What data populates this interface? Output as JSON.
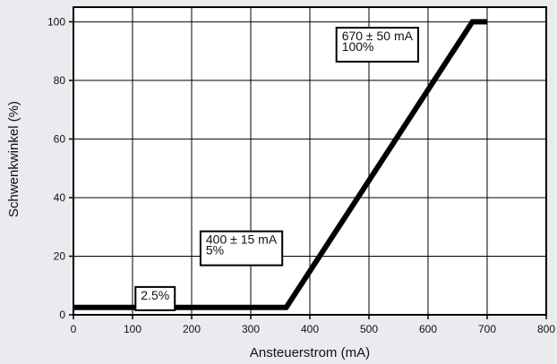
{
  "chart_data": {
    "type": "line",
    "xlabel": "Ansteuerstrom (mA)",
    "ylabel": "Schwenkwinkel (%)",
    "xlim": [
      0,
      800
    ],
    "ylim": [
      0,
      105
    ],
    "x_ticks": [
      0,
      100,
      200,
      300,
      400,
      500,
      600,
      700,
      800
    ],
    "y_ticks": [
      0,
      20,
      40,
      60,
      80,
      100
    ],
    "grid": true,
    "series": [
      {
        "x": [
          0,
          360,
          675,
          700
        ],
        "y": [
          2.5,
          2.5,
          100,
          100
        ]
      }
    ],
    "annotations": [
      {
        "lines": [
          "2.5%"
        ],
        "x": 105,
        "y": 9.5
      },
      {
        "lines": [
          "400 ± 15 mA",
          "5%"
        ],
        "x": 215,
        "y": 28.5
      },
      {
        "lines": [
          "670 ± 50 mA",
          "100%"
        ],
        "x": 445,
        "y": 98
      }
    ],
    "colors": {
      "line": "#000000",
      "grid": "#000000",
      "background": "#ffffff"
    }
  }
}
